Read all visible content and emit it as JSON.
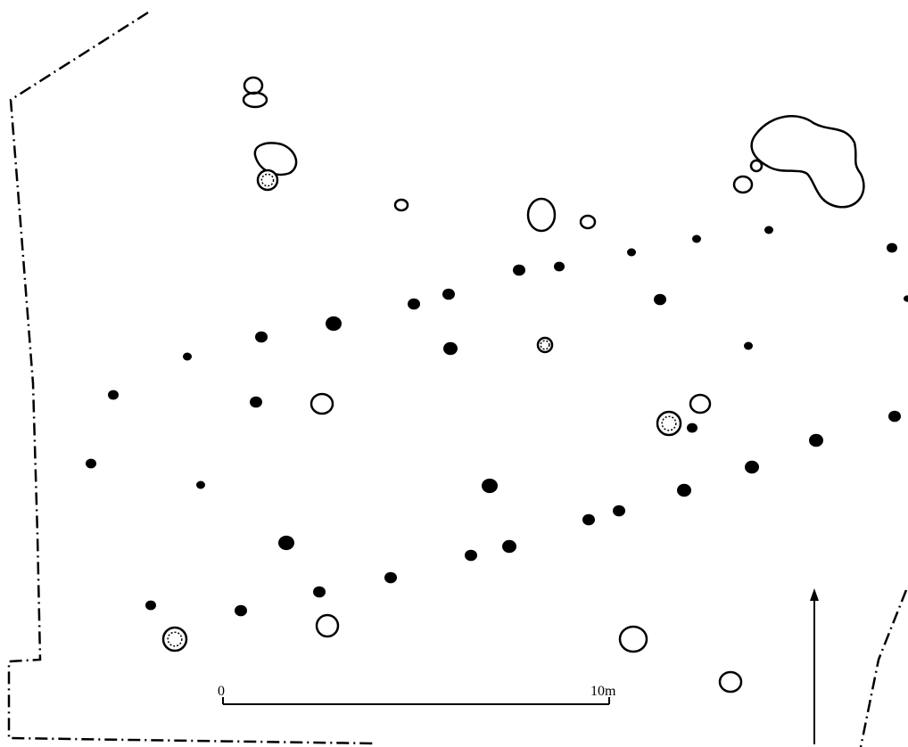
{
  "scale_bar": {
    "start_label": "0",
    "end_label": "10m"
  }
}
